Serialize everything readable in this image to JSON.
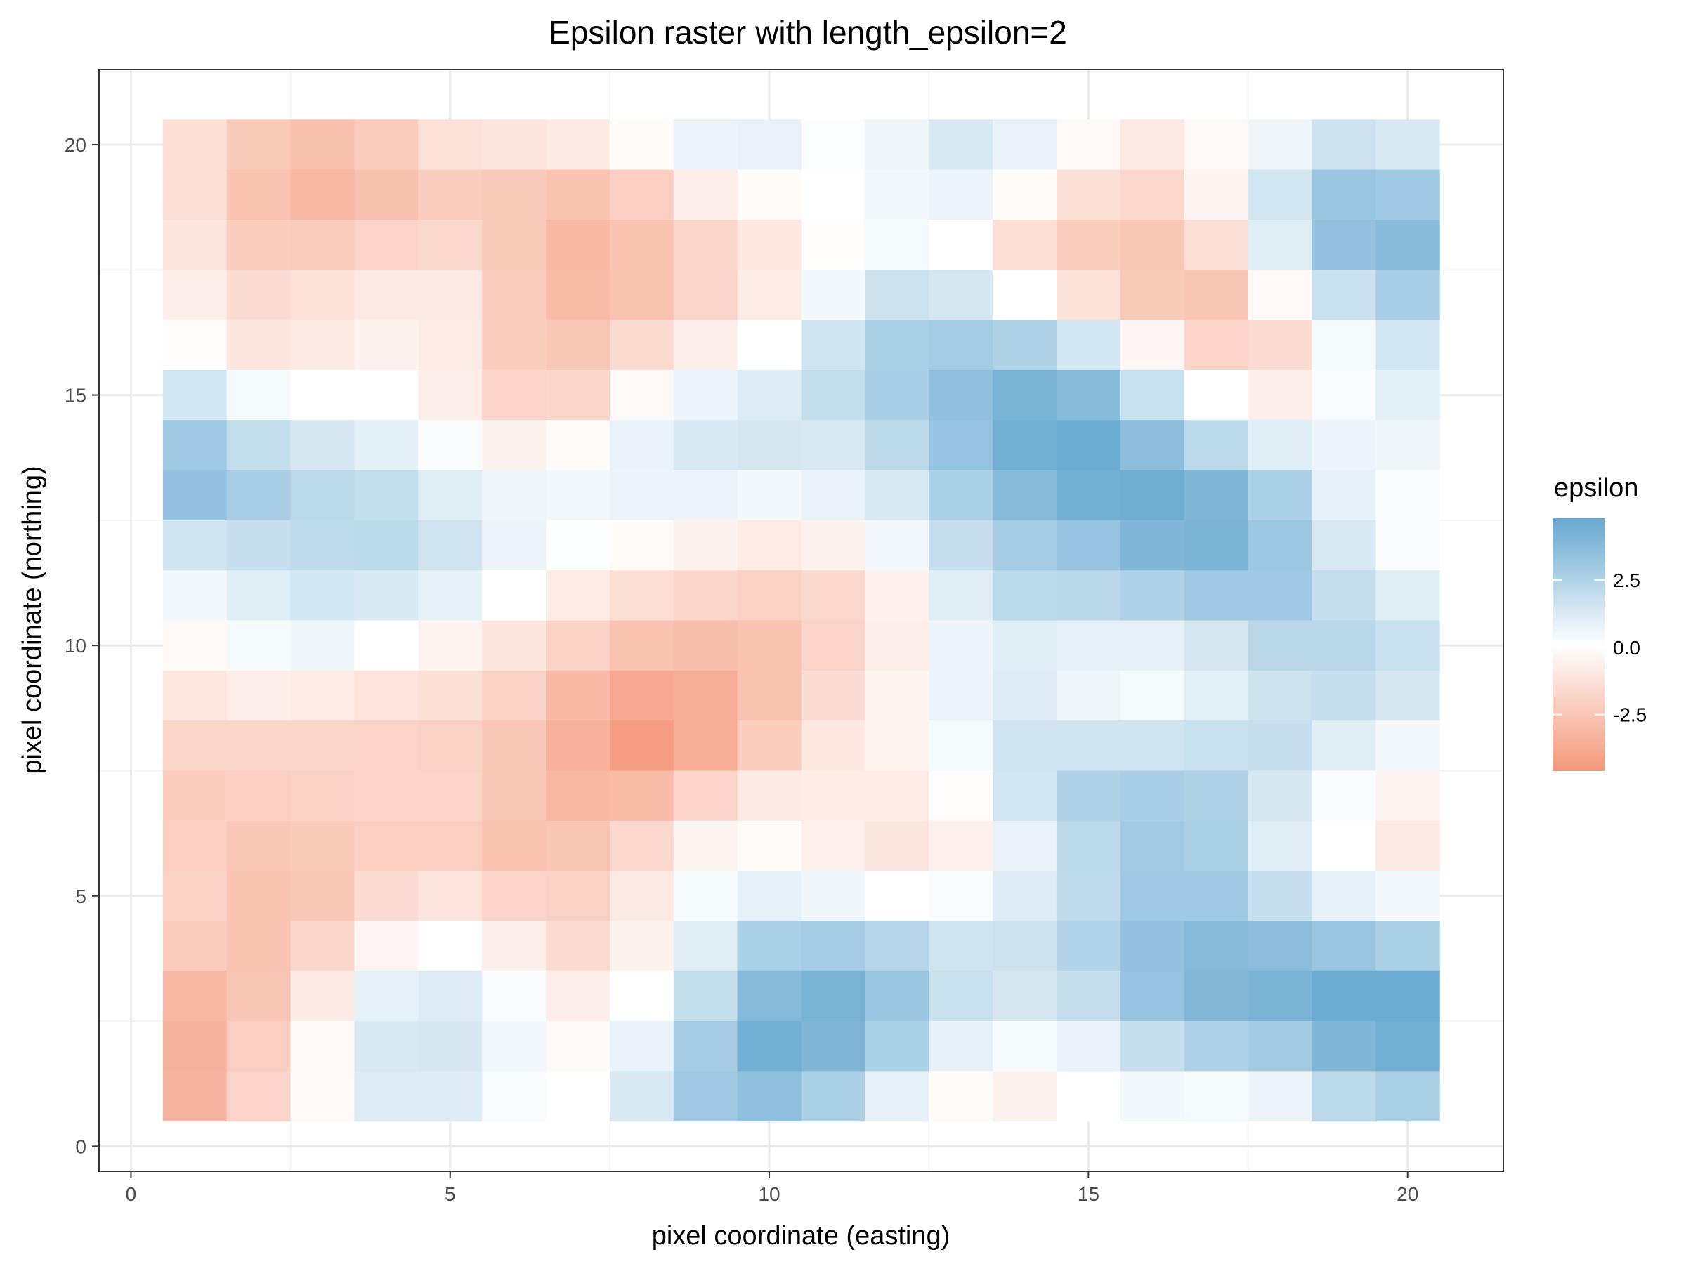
{
  "chart_data": {
    "type": "heatmap",
    "title": "Epsilon raster with length_epsilon=2",
    "xlabel": "pixel coordinate (easting)",
    "ylabel": "pixel coordinate (northing)",
    "x": [
      1,
      2,
      3,
      4,
      5,
      6,
      7,
      8,
      9,
      10,
      11,
      12,
      13,
      14,
      15,
      16,
      17,
      18,
      19,
      20
    ],
    "y": [
      20,
      19,
      18,
      17,
      16,
      15,
      14,
      13,
      12,
      11,
      10,
      9,
      8,
      7,
      6,
      5,
      4,
      3,
      2,
      1
    ],
    "xlim": [
      -0.5,
      21.5
    ],
    "ylim": [
      -0.5,
      21.5
    ],
    "xticks": [
      0,
      5,
      10,
      15,
      20
    ],
    "xtick_labels": [
      "0",
      "5",
      "10",
      "15",
      "20"
    ],
    "yticks": [
      0,
      5,
      10,
      15,
      20
    ],
    "ytick_labels": [
      "0",
      "5",
      "10",
      "15",
      "20"
    ],
    "grid": true,
    "values": [
      [
        -1.5,
        -2.5,
        -2.9,
        -2.4,
        -1.4,
        -1.2,
        -1.0,
        -0.2,
        0.6,
        0.7,
        0.1,
        0.5,
        1.2,
        0.7,
        -0.3,
        -1.0,
        -0.3,
        0.5,
        1.6,
        1.2
      ],
      [
        -1.5,
        -2.8,
        -3.3,
        -2.9,
        -2.3,
        -2.5,
        -2.8,
        -2.2,
        -0.8,
        -0.2,
        0.0,
        0.4,
        0.6,
        -0.2,
        -1.5,
        -1.8,
        -0.5,
        1.4,
        3.2,
        3.0
      ],
      [
        -1.2,
        -2.3,
        -2.4,
        -2.0,
        -1.8,
        -2.5,
        -3.2,
        -2.8,
        -1.9,
        -1.1,
        -0.1,
        0.3,
        0.0,
        -1.5,
        -2.3,
        -2.6,
        -1.5,
        1.0,
        3.4,
        3.7
      ],
      [
        -0.8,
        -1.6,
        -1.4,
        -1.0,
        -1.0,
        -2.4,
        -3.1,
        -2.8,
        -1.9,
        -0.9,
        0.4,
        1.6,
        1.3,
        0.0,
        -1.4,
        -2.5,
        -2.7,
        -0.3,
        1.7,
        2.7
      ],
      [
        -0.1,
        -1.2,
        -1.0,
        -0.6,
        -0.9,
        -2.3,
        -2.6,
        -1.7,
        -0.8,
        0.0,
        1.5,
        2.6,
        2.8,
        2.5,
        1.4,
        -0.4,
        -2.0,
        -1.6,
        0.3,
        1.4
      ],
      [
        1.4,
        0.3,
        0.0,
        0.0,
        -0.8,
        -2.0,
        -1.9,
        -0.3,
        0.6,
        1.1,
        1.9,
        2.7,
        3.5,
        4.2,
        3.7,
        1.7,
        0.0,
        -0.8,
        0.2,
        0.9
      ],
      [
        3.0,
        1.9,
        1.3,
        0.9,
        0.2,
        -0.6,
        -0.2,
        0.7,
        1.2,
        1.3,
        1.2,
        2.1,
        3.3,
        4.4,
        4.6,
        3.6,
        2.1,
        1.0,
        0.6,
        0.5
      ],
      [
        3.4,
        2.7,
        2.1,
        1.9,
        1.0,
        0.5,
        0.4,
        0.6,
        0.6,
        0.4,
        0.7,
        1.2,
        2.6,
        3.8,
        4.4,
        4.5,
        4.0,
        2.6,
        0.8,
        0.2
      ],
      [
        1.5,
        1.8,
        2.0,
        2.1,
        1.5,
        0.6,
        0.1,
        -0.2,
        -0.6,
        -0.9,
        -0.6,
        0.4,
        1.8,
        2.8,
        3.3,
        4.0,
        4.1,
        3.1,
        1.2,
        0.2
      ],
      [
        0.4,
        1.0,
        1.4,
        1.2,
        0.8,
        0.0,
        -0.9,
        -1.5,
        -1.9,
        -2.1,
        -1.8,
        -0.7,
        1.0,
        2.1,
        2.2,
        2.5,
        3.0,
        3.0,
        1.8,
        1.0
      ],
      [
        -0.3,
        0.3,
        0.5,
        0.0,
        -0.5,
        -1.2,
        -2.1,
        -2.8,
        -3.0,
        -2.8,
        -2.0,
        -0.8,
        0.6,
        1.0,
        0.8,
        0.8,
        1.3,
        2.2,
        2.2,
        1.7
      ],
      [
        -1.1,
        -0.8,
        -0.9,
        -1.3,
        -1.5,
        -2.1,
        -3.2,
        -4.0,
        -3.8,
        -2.8,
        -1.6,
        -0.5,
        0.6,
        1.1,
        0.5,
        0.3,
        0.9,
        1.6,
        1.8,
        1.3
      ],
      [
        -1.9,
        -1.9,
        -1.9,
        -2.0,
        -2.1,
        -2.6,
        -3.6,
        -4.5,
        -3.8,
        -2.3,
        -1.1,
        -0.5,
        0.3,
        1.5,
        1.5,
        1.5,
        1.7,
        1.8,
        1.0,
        0.4
      ],
      [
        -2.3,
        -2.2,
        -2.1,
        -2.0,
        -2.0,
        -2.6,
        -3.3,
        -3.1,
        -2.0,
        -1.0,
        -0.9,
        -0.9,
        -0.1,
        1.4,
        2.5,
        2.7,
        2.5,
        1.3,
        0.2,
        -0.5
      ],
      [
        -2.2,
        -2.6,
        -2.5,
        -2.2,
        -2.2,
        -2.8,
        -2.7,
        -1.8,
        -0.5,
        -0.2,
        -0.7,
        -1.2,
        -0.7,
        0.7,
        2.1,
        2.9,
        2.6,
        1.0,
        0.0,
        -1.0
      ],
      [
        -2.1,
        -2.8,
        -2.6,
        -1.6,
        -1.3,
        -2.0,
        -2.1,
        -1.0,
        0.3,
        0.8,
        0.5,
        0.0,
        0.2,
        1.1,
        2.0,
        3.0,
        3.0,
        1.8,
        0.8,
        0.4
      ],
      [
        -2.4,
        -2.8,
        -1.9,
        -0.4,
        0.0,
        -0.8,
        -1.6,
        -0.6,
        1.0,
        2.6,
        2.8,
        2.3,
        1.5,
        1.6,
        2.4,
        3.4,
        3.8,
        3.6,
        3.2,
        2.6
      ],
      [
        -3.3,
        -2.7,
        -1.0,
        0.8,
        1.1,
        0.2,
        -0.8,
        0.0,
        1.9,
        3.8,
        4.2,
        3.2,
        1.7,
        1.3,
        1.8,
        3.3,
        3.9,
        4.2,
        4.6,
        4.6
      ],
      [
        -3.5,
        -2.2,
        -0.3,
        1.2,
        1.3,
        0.4,
        -0.3,
        0.7,
        2.8,
        4.4,
        4.0,
        2.6,
        0.8,
        0.3,
        0.7,
        1.8,
        2.5,
        2.9,
        4.0,
        4.4
      ],
      [
        -3.4,
        -2.0,
        -0.3,
        1.1,
        1.1,
        0.2,
        0.0,
        1.2,
        3.0,
        3.5,
        2.6,
        0.8,
        -0.2,
        -0.6,
        0.0,
        0.4,
        0.3,
        0.6,
        2.1,
        2.6
      ]
    ],
    "colorbar": {
      "title": "epsilon",
      "ticks": [
        2.5,
        0.0,
        -2.5
      ],
      "tick_labels": [
        "2.5",
        "0.0",
        "-2.5"
      ],
      "range": [
        -4.6,
        4.8
      ],
      "low_color": "#f4977a",
      "mid_color": "#ffffff",
      "high_color": "#66a8d0"
    },
    "legend_position": "right"
  },
  "colors": {
    "panel_border": "#333333",
    "grid_major": "#ebebeb",
    "grid_minor": "#f5f5f5",
    "tick_text": "#4d4d4d"
  }
}
